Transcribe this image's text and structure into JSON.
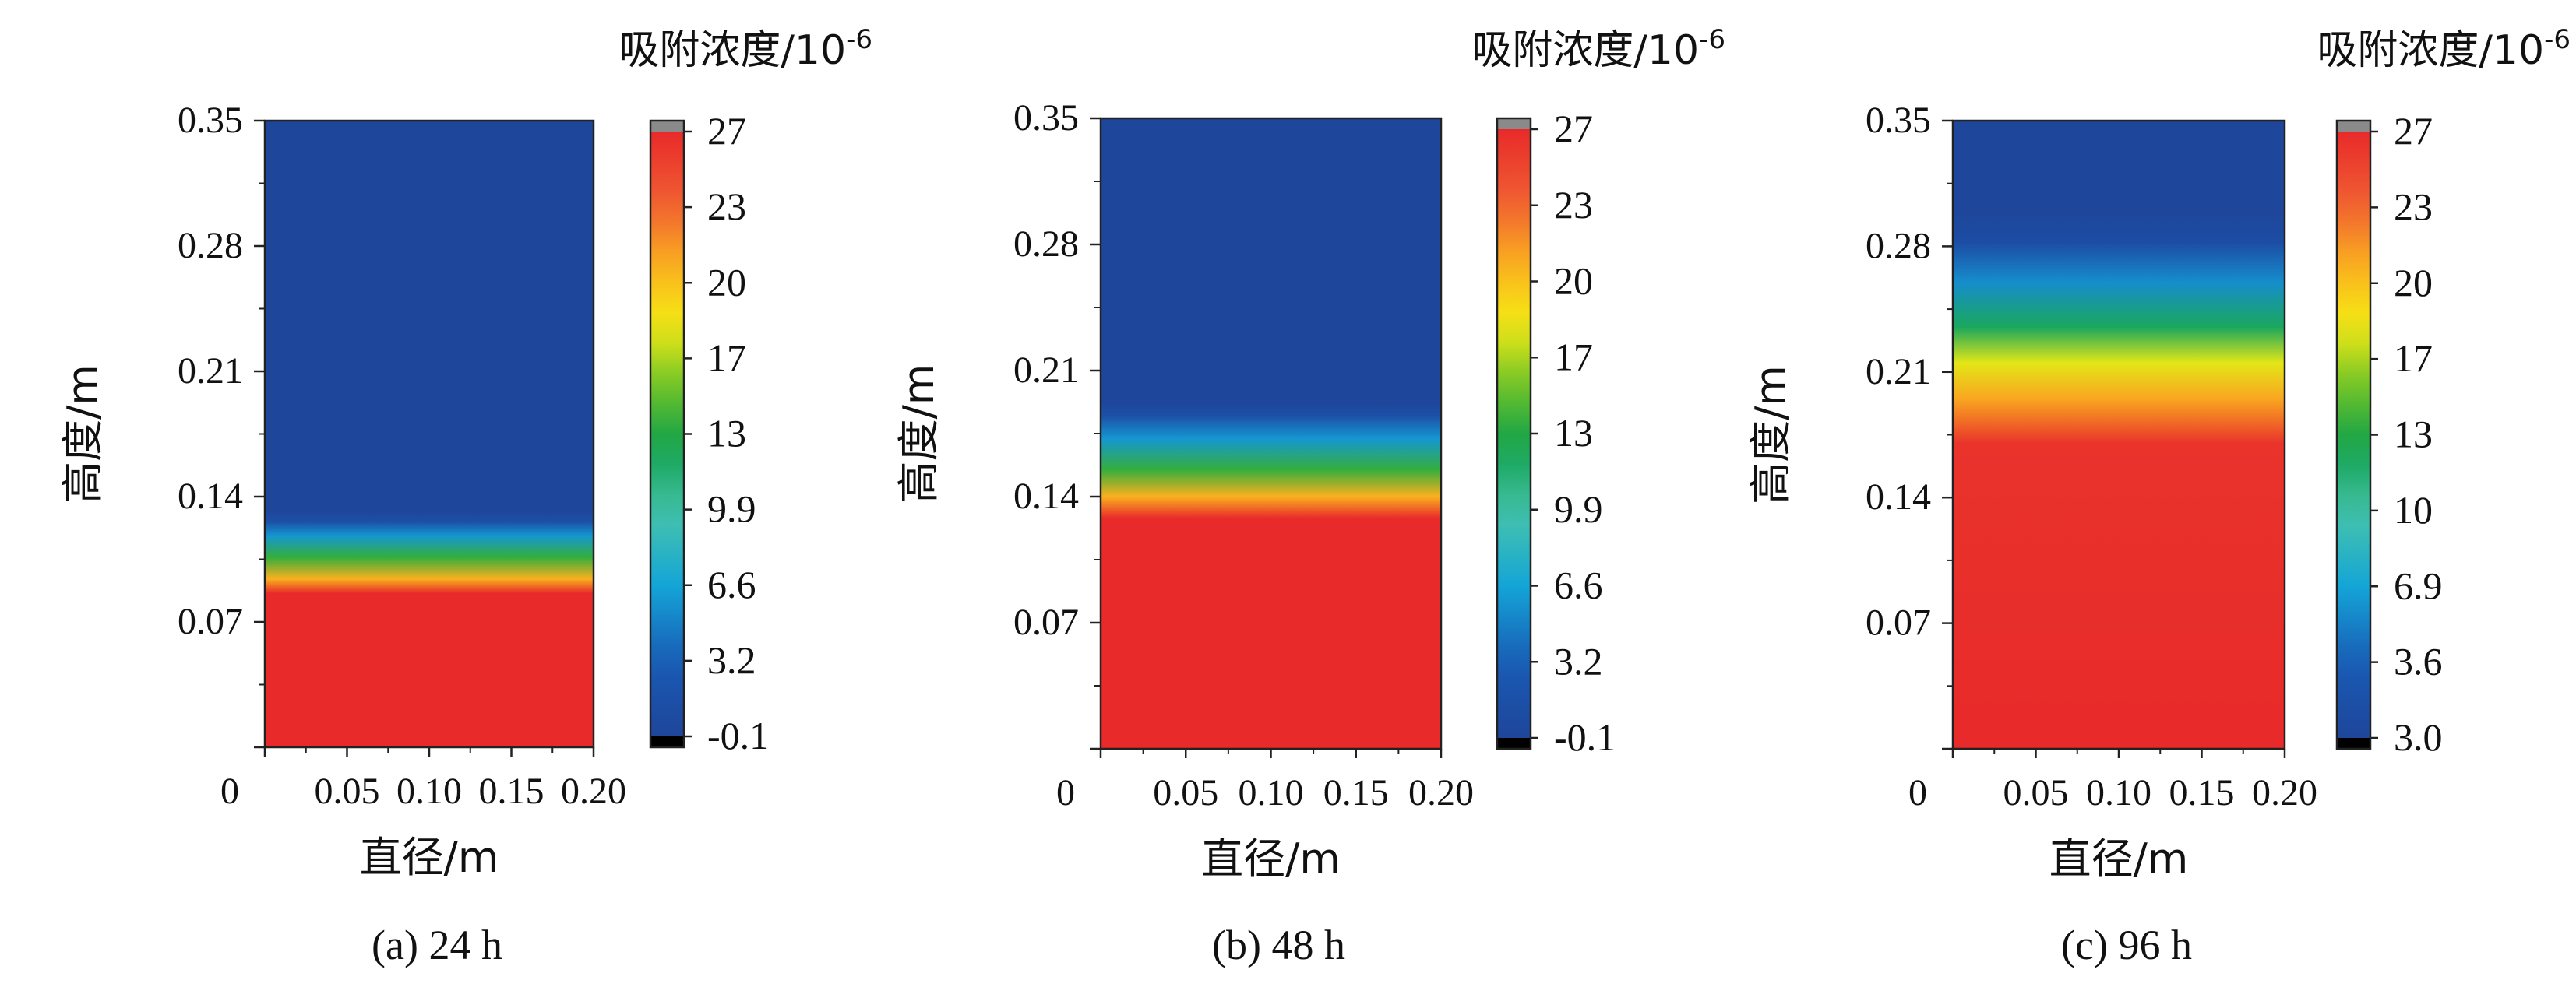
{
  "chart_data": [
    {
      "type": "heatmap",
      "caption": "(a) 24 h",
      "xlabel": "直径/m",
      "ylabel": "高度/m",
      "colorbar_title": "吸附浓度/10",
      "colorbar_title_exp": "-6",
      "xlim": [
        0,
        0.2
      ],
      "ylim": [
        0,
        0.35
      ],
      "x_ticks": [
        "0",
        "0.05",
        "0.10",
        "0.15",
        "0.20"
      ],
      "y_ticks": [
        "0.07",
        "0.14",
        "0.21",
        "0.28",
        "0.35"
      ],
      "colorbar_ticks": [
        "27",
        "23",
        "20",
        "17",
        "13",
        "9.9",
        "6.6",
        "3.2",
        "-0.1"
      ],
      "colorbar_range": [
        -0.1,
        27
      ],
      "profile": [
        {
          "height": 0.0,
          "value": 27
        },
        {
          "height": 0.086,
          "value": 27
        },
        {
          "height": 0.094,
          "value": 21
        },
        {
          "height": 0.106,
          "value": 14
        },
        {
          "height": 0.118,
          "value": 6
        },
        {
          "height": 0.126,
          "value": 1.5
        },
        {
          "height": 0.132,
          "value": -0.1
        },
        {
          "height": 0.35,
          "value": -0.1
        }
      ]
    },
    {
      "type": "heatmap",
      "caption": "(b) 48 h",
      "xlabel": "直径/m",
      "ylabel": "高度/m",
      "colorbar_title": "吸附浓度/10",
      "colorbar_title_exp": "-6",
      "xlim": [
        0,
        0.2
      ],
      "ylim": [
        0,
        0.35
      ],
      "x_ticks": [
        "0",
        "0.05",
        "0.10",
        "0.15",
        "0.20"
      ],
      "y_ticks": [
        "0.07",
        "0.14",
        "0.21",
        "0.28",
        "0.35"
      ],
      "colorbar_ticks": [
        "27",
        "23",
        "20",
        "17",
        "13",
        "9.9",
        "6.6",
        "3.2",
        "-0.1"
      ],
      "colorbar_range": [
        -0.1,
        27
      ],
      "profile": [
        {
          "height": 0.0,
          "value": 27
        },
        {
          "height": 0.128,
          "value": 27
        },
        {
          "height": 0.14,
          "value": 21
        },
        {
          "height": 0.155,
          "value": 14
        },
        {
          "height": 0.172,
          "value": 6
        },
        {
          "height": 0.185,
          "value": 1.5
        },
        {
          "height": 0.192,
          "value": -0.1
        },
        {
          "height": 0.35,
          "value": -0.1
        }
      ]
    },
    {
      "type": "heatmap",
      "caption": "(c) 96 h",
      "xlabel": "直径/m",
      "ylabel": "高度/m",
      "colorbar_title": "吸附浓度/10",
      "colorbar_title_exp": "-6",
      "xlim": [
        0,
        0.2
      ],
      "ylim": [
        0,
        0.35
      ],
      "x_ticks": [
        "0",
        "0.05",
        "0.10",
        "0.15",
        "0.20"
      ],
      "y_ticks": [
        "0.07",
        "0.14",
        "0.21",
        "0.28",
        "0.35"
      ],
      "colorbar_ticks": [
        "27",
        "23",
        "20",
        "17",
        "13",
        "10",
        "6.9",
        "3.6",
        "3.0"
      ],
      "colorbar_range": [
        3.0,
        27
      ],
      "profile": [
        {
          "height": 0.0,
          "value": 27
        },
        {
          "height": 0.17,
          "value": 26.5
        },
        {
          "height": 0.195,
          "value": 22
        },
        {
          "height": 0.215,
          "value": 19
        },
        {
          "height": 0.235,
          "value": 14
        },
        {
          "height": 0.26,
          "value": 8
        },
        {
          "height": 0.282,
          "value": 4
        },
        {
          "height": 0.3,
          "value": 3.0
        },
        {
          "height": 0.35,
          "value": 3.0
        }
      ]
    }
  ]
}
